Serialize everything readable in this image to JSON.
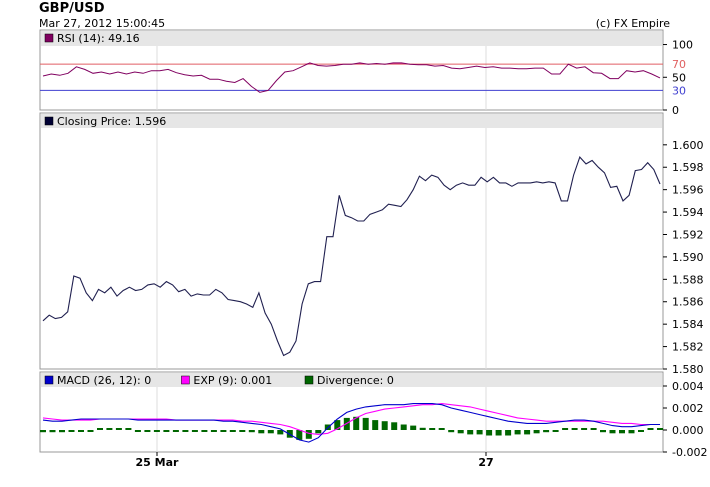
{
  "header": {
    "symbol": "GBP/USD",
    "timestamp": "Mar 27, 2012 15:00:45",
    "copyright": "(c) FX Empire"
  },
  "chart_data": [
    {
      "type": "line",
      "panel": "rsi",
      "legend": [
        {
          "label": "RSI (14): 49.16",
          "color": "#800060"
        }
      ],
      "ylim": [
        0,
        110
      ],
      "ticks": [
        "100",
        "50",
        "0"
      ],
      "ref_lines": [
        {
          "value": 70,
          "label": "70",
          "color": "#e06060"
        },
        {
          "value": 30,
          "label": "30",
          "color": "#4040d0"
        }
      ],
      "series": [
        {
          "name": "RSI (14)",
          "color": "#800060",
          "fill_above_70": "#e0407a",
          "values": [
            52,
            55,
            53,
            56,
            66,
            62,
            56,
            58,
            55,
            58,
            55,
            58,
            56,
            60,
            60,
            62,
            57,
            54,
            52,
            53,
            47,
            47,
            44,
            42,
            48,
            36,
            27,
            30,
            45,
            58,
            60,
            66,
            72,
            68,
            67,
            68,
            70,
            70,
            72,
            70,
            71,
            70,
            72,
            72,
            70,
            69,
            69,
            67,
            68,
            64,
            63,
            65,
            67,
            65,
            66,
            64,
            64,
            63,
            63,
            64,
            64,
            55,
            55,
            70,
            64,
            66,
            57,
            56,
            48,
            48,
            60,
            58,
            60,
            55,
            49
          ]
        }
      ]
    },
    {
      "type": "line",
      "panel": "price",
      "legend": [
        {
          "label": "Closing Price: 1.596",
          "color": "#000033"
        }
      ],
      "ylim": [
        1.58,
        1.6015
      ],
      "ticks": [
        "1.600",
        "1.598",
        "1.596",
        "1.594",
        "1.592",
        "1.590",
        "1.588",
        "1.586",
        "1.584",
        "1.582",
        "1.580"
      ],
      "series": [
        {
          "name": "Closing Price",
          "color": "#202050",
          "values": [
            1.5843,
            1.5848,
            1.5845,
            1.5846,
            1.5851,
            1.5883,
            1.5881,
            1.5868,
            1.5861,
            1.5871,
            1.5868,
            1.5873,
            1.5865,
            1.587,
            1.5873,
            1.587,
            1.5871,
            1.5875,
            1.5876,
            1.5873,
            1.5878,
            1.5875,
            1.5869,
            1.5871,
            1.5865,
            1.5867,
            1.5866,
            1.5866,
            1.5871,
            1.5868,
            1.5862,
            1.5861,
            1.586,
            1.5858,
            1.5855,
            1.5868,
            1.585,
            1.584,
            1.5825,
            1.5812,
            1.5815,
            1.5825,
            1.5858,
            1.5876,
            1.5878,
            1.5878,
            1.5918,
            1.5918,
            1.5955,
            1.5937,
            1.5935,
            1.5932,
            1.5932,
            1.5938,
            1.594,
            1.5942,
            1.5947,
            1.5946,
            1.5945,
            1.5951,
            1.596,
            1.5972,
            1.5968,
            1.5973,
            1.5971,
            1.5964,
            1.596,
            1.5964,
            1.5966,
            1.5964,
            1.5964,
            1.5971,
            1.5967,
            1.5971,
            1.5966,
            1.5966,
            1.5963,
            1.5966,
            1.5966,
            1.5966,
            1.5967,
            1.5966,
            1.5967,
            1.5966,
            1.595,
            1.595,
            1.5973,
            1.5989,
            1.5983,
            1.5986,
            1.598,
            1.5975,
            1.5962,
            1.5963,
            1.595,
            1.5955,
            1.5977,
            1.5978,
            1.5984,
            1.5978,
            1.5965
          ]
        }
      ]
    },
    {
      "type": "bar",
      "panel": "macd",
      "legend": [
        {
          "label": "MACD (26, 12): 0",
          "color": "#0000cc"
        },
        {
          "label": "EXP (9): 0.001",
          "color": "#ff00ff"
        },
        {
          "label": "Divergence: 0",
          "color": "#006600"
        }
      ],
      "ylim": [
        -0.002,
        0.004
      ],
      "ticks": [
        "0.004",
        "0.002",
        "0.000",
        "-0.002"
      ],
      "series": [
        {
          "name": "MACD (26, 12)",
          "color": "#0000cc",
          "values": [
            0.0009,
            0.0008,
            0.0008,
            0.0009,
            0.001,
            0.001,
            0.001,
            0.001,
            0.001,
            0.001,
            0.0009,
            0.0009,
            0.0009,
            0.0009,
            0.0009,
            0.0009,
            0.0009,
            0.0009,
            0.0009,
            0.0008,
            0.0008,
            0.0007,
            0.0006,
            0.0005,
            0.0003,
            0.0001,
            -0.0004,
            -0.0009,
            -0.0011,
            -0.0007,
            0.0002,
            0.001,
            0.0016,
            0.0019,
            0.0021,
            0.0022,
            0.0023,
            0.0023,
            0.0023,
            0.0024,
            0.0024,
            0.0024,
            0.0023,
            0.002,
            0.0018,
            0.0016,
            0.0014,
            0.0012,
            0.001,
            0.0008,
            0.0007,
            0.0006,
            0.0006,
            0.0006,
            0.0007,
            0.0008,
            0.0009,
            0.0009,
            0.0008,
            0.0006,
            0.0004,
            0.0003,
            0.0003,
            0.0004,
            0.0005,
            0.0005
          ]
        },
        {
          "name": "EXP (9)",
          "color": "#ff00ff",
          "values": [
            0.0011,
            0.001,
            0.0009,
            0.0009,
            0.0009,
            0.0009,
            0.001,
            0.001,
            0.001,
            0.001,
            0.001,
            0.001,
            0.001,
            0.001,
            0.0009,
            0.0009,
            0.0009,
            0.0009,
            0.0009,
            0.0009,
            0.0009,
            0.0008,
            0.0008,
            0.0007,
            0.0006,
            0.0005,
            0.0003,
            0.0,
            -0.0003,
            -0.0004,
            -0.0003,
            0.0001,
            0.0006,
            0.0011,
            0.0015,
            0.0017,
            0.0019,
            0.002,
            0.0021,
            0.0022,
            0.0023,
            0.0023,
            0.0024,
            0.0023,
            0.0022,
            0.0021,
            0.0019,
            0.0017,
            0.0015,
            0.0013,
            0.0011,
            0.001,
            0.0009,
            0.0008,
            0.0008,
            0.0008,
            0.0008,
            0.0008,
            0.0008,
            0.0008,
            0.0007,
            0.0006,
            0.0006,
            0.0005,
            0.0005,
            0.0005
          ]
        },
        {
          "name": "Divergence",
          "color": "#006600",
          "values": [
            -0.0002,
            -0.0002,
            -0.0002,
            -0.0001,
            -0.0001,
            -0.0001,
            0,
            0,
            0,
            0,
            -0.0001,
            -0.0001,
            -0.0001,
            -0.0001,
            -0.0001,
            -0.0001,
            -0.0001,
            -0.0001,
            -0.0001,
            -0.0001,
            -0.0001,
            -0.0001,
            -0.0002,
            -0.0003,
            -0.0003,
            -0.0004,
            -0.0007,
            -0.0009,
            -0.0008,
            -0.0003,
            0.0005,
            0.0009,
            0.0011,
            0.0012,
            0.0011,
            0.0009,
            0.0008,
            0.0007,
            0.0005,
            0.0004,
            0.0002,
            0.0001,
            0,
            -0.0002,
            -0.0003,
            -0.0004,
            -0.0004,
            -0.0005,
            -0.0005,
            -0.0005,
            -0.0004,
            -0.0004,
            -0.0003,
            -0.0002,
            -0.0001,
            0,
            0.0001,
            0.0001,
            0,
            -0.0002,
            -0.0003,
            -0.0003,
            -0.0003,
            -0.0001,
            0,
            0
          ]
        }
      ],
      "xlabels": [
        "25 Mar",
        "27"
      ]
    }
  ]
}
